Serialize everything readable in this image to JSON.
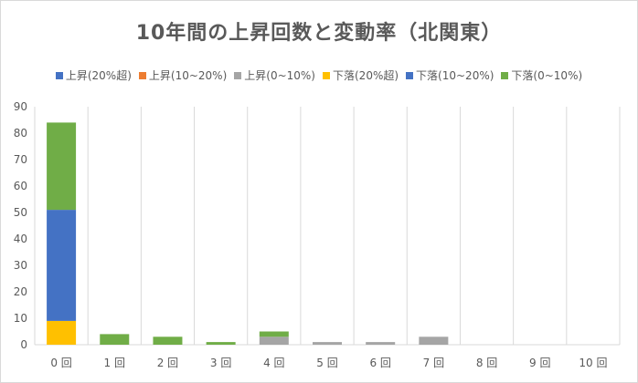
{
  "chart_data": {
    "type": "bar",
    "stacked": true,
    "title": "10年間の上昇回数と変動率（北関東）",
    "categories": [
      "0 回",
      "1 回",
      "2 回",
      "3 回",
      "4 回",
      "5 回",
      "6 回",
      "7 回",
      "8 回",
      "9 回",
      "10 回"
    ],
    "ylim": [
      0,
      90
    ],
    "yticks": [
      0,
      10,
      20,
      30,
      40,
      50,
      60,
      70,
      80,
      90
    ],
    "grid": "vertical",
    "legend": "top",
    "series": [
      {
        "name": "上昇(20%超)",
        "color": "#4472c4",
        "values": [
          0,
          0,
          0,
          0,
          0,
          0,
          0,
          0,
          0,
          0,
          0
        ]
      },
      {
        "name": "上昇(10~20%)",
        "color": "#ed7d31",
        "values": [
          0,
          0,
          0,
          0,
          0,
          0,
          0,
          0,
          0,
          0,
          0
        ]
      },
      {
        "name": "上昇(0~10%)",
        "color": "#a5a5a5",
        "values": [
          0,
          0,
          0,
          0,
          3,
          1,
          1,
          3,
          0,
          0,
          0
        ]
      },
      {
        "name": "下落(20%超)",
        "color": "#ffc000",
        "values": [
          9,
          0,
          0,
          0,
          0,
          0,
          0,
          0,
          0,
          0,
          0
        ]
      },
      {
        "name": "下落(10~20%)",
        "color": "#4472c4",
        "values": [
          42,
          0,
          0,
          0,
          0,
          0,
          0,
          0,
          0,
          0,
          0
        ]
      },
      {
        "name": "下落(0~10%)",
        "color": "#70ad47",
        "values": [
          33,
          4,
          3,
          1,
          2,
          0,
          0,
          0,
          0,
          0,
          0
        ]
      }
    ]
  }
}
